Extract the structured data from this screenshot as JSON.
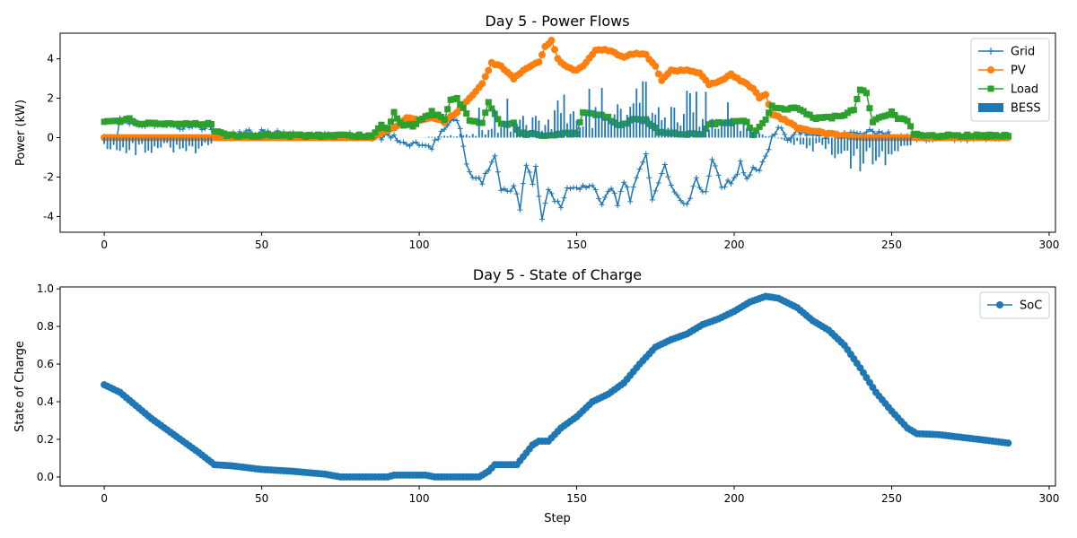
{
  "chart_data": [
    {
      "type": "line",
      "title": "Day 5 - Power Flows",
      "xlabel": "",
      "ylabel": "Power (kW)",
      "xlim": [
        -14,
        302
      ],
      "ylim": [
        -4.8,
        5.3
      ],
      "xticks": [
        0,
        50,
        100,
        150,
        200,
        250,
        300
      ],
      "yticks": [
        -4,
        -2,
        0,
        2,
        4
      ],
      "grid": false,
      "legend": "top-right",
      "colors": {
        "Grid": "#1f77b4",
        "PV": "#ff7f0e",
        "Load": "#2ca02c",
        "BESS": "#1f77b4"
      },
      "series": [
        {
          "name": "Grid",
          "marker": "plus",
          "knots": [
            [
              0,
              0.0
            ],
            [
              4,
              0.1
            ],
            [
              5,
              0.9
            ],
            [
              10,
              0.7
            ],
            [
              20,
              0.6
            ],
            [
              34,
              0.55
            ],
            [
              35,
              0.1
            ],
            [
              50,
              0.3
            ],
            [
              60,
              0.1
            ],
            [
              85,
              0.1
            ],
            [
              92,
              0.0
            ],
            [
              95,
              -0.25
            ],
            [
              100,
              -0.35
            ],
            [
              104,
              -0.5
            ],
            [
              108,
              0.4
            ],
            [
              111,
              1.0
            ],
            [
              113,
              0.5
            ],
            [
              115,
              -1.3
            ],
            [
              117,
              -1.9
            ],
            [
              120,
              -2.2
            ],
            [
              122,
              -1.5
            ],
            [
              124,
              -0.8
            ],
            [
              126,
              -2.7
            ],
            [
              130,
              -2.5
            ],
            [
              132,
              -3.5
            ],
            [
              134,
              -1.4
            ],
            [
              136,
              -2.2
            ],
            [
              137,
              -1.6
            ],
            [
              139,
              -4.1
            ],
            [
              141,
              -2.6
            ],
            [
              143,
              -3.1
            ],
            [
              145,
              -3.7
            ],
            [
              147,
              -2.5
            ],
            [
              150,
              -2.5
            ],
            [
              155,
              -2.3
            ],
            [
              158,
              -3.4
            ],
            [
              161,
              -2.6
            ],
            [
              163,
              -3.3
            ],
            [
              165,
              -2.2
            ],
            [
              167,
              -3.1
            ],
            [
              170,
              -1.5
            ],
            [
              172,
              -0.8
            ],
            [
              174,
              -3.0
            ],
            [
              176,
              -2.2
            ],
            [
              178,
              -1.5
            ],
            [
              182,
              -3.1
            ],
            [
              185,
              -3.3
            ],
            [
              188,
              -2.2
            ],
            [
              191,
              -2.8
            ],
            [
              193,
              -1.1
            ],
            [
              196,
              -2.4
            ],
            [
              200,
              -2.2
            ],
            [
              202,
              -1.3
            ],
            [
              204,
              -2.2
            ],
            [
              206,
              -1.6
            ],
            [
              208,
              -1.5
            ],
            [
              210,
              -0.9
            ],
            [
              212,
              0.0
            ],
            [
              214,
              0.5
            ],
            [
              217,
              0.0
            ],
            [
              220,
              0.3
            ],
            [
              230,
              0.1
            ],
            [
              240,
              0.2
            ],
            [
              245,
              0.3
            ],
            [
              250,
              0.1
            ],
            [
              256,
              0.0
            ],
            [
              287,
              0.0
            ]
          ]
        },
        {
          "name": "PV",
          "marker": "circle",
          "knots": [
            [
              0,
              0.0
            ],
            [
              85,
              0.0
            ],
            [
              92,
              0.5
            ],
            [
              96,
              1.0
            ],
            [
              100,
              0.9
            ],
            [
              104,
              1.0
            ],
            [
              108,
              0.8
            ],
            [
              112,
              1.3
            ],
            [
              116,
              2.0
            ],
            [
              120,
              2.7
            ],
            [
              123,
              3.8
            ],
            [
              126,
              3.6
            ],
            [
              128,
              3.3
            ],
            [
              130,
              3.0
            ],
            [
              134,
              3.5
            ],
            [
              136,
              3.7
            ],
            [
              138,
              3.8
            ],
            [
              140,
              4.6
            ],
            [
              142,
              4.9
            ],
            [
              144,
              4.0
            ],
            [
              146,
              3.7
            ],
            [
              150,
              3.4
            ],
            [
              153,
              3.8
            ],
            [
              156,
              4.4
            ],
            [
              159,
              4.5
            ],
            [
              162,
              4.3
            ],
            [
              165,
              4.1
            ],
            [
              169,
              4.3
            ],
            [
              172,
              4.2
            ],
            [
              175,
              3.6
            ],
            [
              177,
              2.9
            ],
            [
              180,
              3.4
            ],
            [
              185,
              3.4
            ],
            [
              189,
              3.3
            ],
            [
              192,
              2.7
            ],
            [
              196,
              2.9
            ],
            [
              199,
              3.2
            ],
            [
              203,
              2.8
            ],
            [
              206,
              2.5
            ],
            [
              208,
              2.0
            ],
            [
              210,
              2.2
            ],
            [
              212,
              1.2
            ],
            [
              216,
              0.9
            ],
            [
              220,
              0.5
            ],
            [
              230,
              0.2
            ],
            [
              240,
              0.0
            ],
            [
              287,
              0.0
            ]
          ]
        },
        {
          "name": "Load",
          "marker": "square",
          "knots": [
            [
              0,
              0.8
            ],
            [
              5,
              0.8
            ],
            [
              8,
              1.0
            ],
            [
              10,
              0.7
            ],
            [
              20,
              0.7
            ],
            [
              34,
              0.7
            ],
            [
              35,
              0.3
            ],
            [
              40,
              0.1
            ],
            [
              85,
              0.1
            ],
            [
              88,
              0.6
            ],
            [
              90,
              0.4
            ],
            [
              92,
              1.3
            ],
            [
              94,
              0.7
            ],
            [
              98,
              0.6
            ],
            [
              104,
              1.3
            ],
            [
              108,
              0.9
            ],
            [
              110,
              1.9
            ],
            [
              112,
              2.0
            ],
            [
              116,
              0.9
            ],
            [
              120,
              0.7
            ],
            [
              122,
              1.8
            ],
            [
              124,
              1.2
            ],
            [
              126,
              0.7
            ],
            [
              130,
              0.7
            ],
            [
              132,
              0.2
            ],
            [
              136,
              0.2
            ],
            [
              138,
              0.1
            ],
            [
              145,
              0.2
            ],
            [
              150,
              0.2
            ],
            [
              152,
              1.3
            ],
            [
              156,
              1.2
            ],
            [
              160,
              1.0
            ],
            [
              164,
              0.6
            ],
            [
              168,
              0.9
            ],
            [
              172,
              0.9
            ],
            [
              176,
              0.3
            ],
            [
              180,
              0.2
            ],
            [
              190,
              0.2
            ],
            [
              192,
              0.7
            ],
            [
              200,
              0.8
            ],
            [
              204,
              0.8
            ],
            [
              206,
              0.1
            ],
            [
              208,
              0.6
            ],
            [
              210,
              0.9
            ],
            [
              212,
              1.6
            ],
            [
              216,
              1.4
            ],
            [
              220,
              1.5
            ],
            [
              225,
              1.0
            ],
            [
              230,
              1.0
            ],
            [
              234,
              1.1
            ],
            [
              238,
              1.4
            ],
            [
              240,
              2.4
            ],
            [
              242,
              2.3
            ],
            [
              244,
              0.8
            ],
            [
              250,
              1.3
            ],
            [
              252,
              1.0
            ],
            [
              255,
              0.9
            ],
            [
              257,
              0.2
            ],
            [
              260,
              0.1
            ],
            [
              287,
              0.1
            ]
          ]
        },
        {
          "name": "BESS",
          "kind": "bar",
          "knots": [
            [
              0,
              -0.65
            ],
            [
              34,
              -0.55
            ],
            [
              35,
              0.0
            ],
            [
              100,
              0.0
            ],
            [
              118,
              0.2
            ],
            [
              132,
              0.8
            ],
            [
              150,
              1.2
            ],
            [
              170,
              1.3
            ],
            [
              190,
              0.9
            ],
            [
              200,
              0.8
            ],
            [
              205,
              0.4
            ],
            [
              210,
              0.1
            ],
            [
              216,
              -0.15
            ],
            [
              230,
              -0.7
            ],
            [
              240,
              -1.5
            ],
            [
              250,
              -0.9
            ],
            [
              256,
              -0.6
            ],
            [
              257,
              0.0
            ],
            [
              287,
              0.0
            ]
          ]
        }
      ]
    },
    {
      "type": "line",
      "title": "Day 5 - State of Charge",
      "xlabel": "Step",
      "ylabel": "State of Charge",
      "xlim": [
        -14,
        302
      ],
      "ylim": [
        -0.048,
        1.01
      ],
      "xticks": [
        0,
        50,
        100,
        150,
        200,
        250,
        300
      ],
      "yticks": [
        0.0,
        0.2,
        0.4,
        0.6,
        0.8,
        1.0
      ],
      "grid": false,
      "legend": "top-right",
      "series": [
        {
          "name": "SoC",
          "marker": "circle",
          "color": "#1f77b4",
          "knots": [
            [
              0,
              0.49
            ],
            [
              5,
              0.45
            ],
            [
              10,
              0.38
            ],
            [
              15,
              0.31
            ],
            [
              20,
              0.25
            ],
            [
              25,
              0.19
            ],
            [
              30,
              0.13
            ],
            [
              35,
              0.065
            ],
            [
              40,
              0.06
            ],
            [
              50,
              0.04
            ],
            [
              60,
              0.03
            ],
            [
              70,
              0.015
            ],
            [
              75,
              0.0
            ],
            [
              90,
              0.0
            ],
            [
              92,
              0.01
            ],
            [
              102,
              0.01
            ],
            [
              105,
              0.0
            ],
            [
              119,
              0.0
            ],
            [
              122,
              0.03
            ],
            [
              124,
              0.065
            ],
            [
              131,
              0.065
            ],
            [
              136,
              0.17
            ],
            [
              138,
              0.19
            ],
            [
              141,
              0.19
            ],
            [
              145,
              0.26
            ],
            [
              150,
              0.32
            ],
            [
              155,
              0.4
            ],
            [
              160,
              0.44
            ],
            [
              165,
              0.5
            ],
            [
              170,
              0.6
            ],
            [
              175,
              0.69
            ],
            [
              180,
              0.73
            ],
            [
              185,
              0.76
            ],
            [
              190,
              0.81
            ],
            [
              195,
              0.84
            ],
            [
              200,
              0.88
            ],
            [
              205,
              0.93
            ],
            [
              210,
              0.96
            ],
            [
              214,
              0.95
            ],
            [
              220,
              0.9
            ],
            [
              225,
              0.83
            ],
            [
              230,
              0.78
            ],
            [
              235,
              0.7
            ],
            [
              240,
              0.58
            ],
            [
              245,
              0.45
            ],
            [
              250,
              0.35
            ],
            [
              255,
              0.26
            ],
            [
              258,
              0.23
            ],
            [
              265,
              0.225
            ],
            [
              270,
              0.215
            ],
            [
              280,
              0.195
            ],
            [
              287,
              0.18
            ]
          ]
        }
      ]
    }
  ]
}
